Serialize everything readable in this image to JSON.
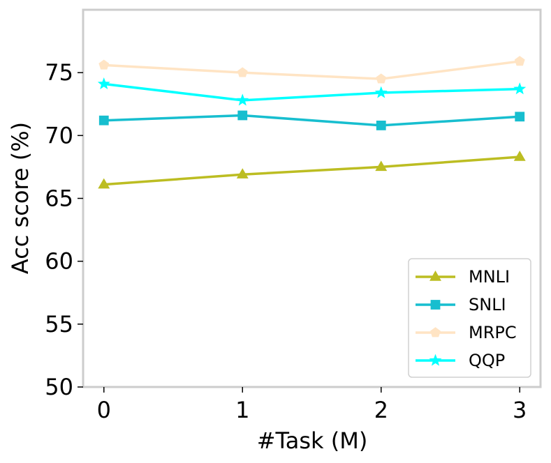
{
  "chart_data": {
    "type": "line",
    "title": "",
    "xlabel": "#Task (M)",
    "ylabel": "Acc score (%)",
    "x": [
      0,
      1,
      2,
      3
    ],
    "x_tick_labels": [
      "0",
      "1",
      "2",
      "3"
    ],
    "xlim": [
      -0.15,
      3.15
    ],
    "ylim": [
      50,
      80
    ],
    "y_ticks": [
      50,
      55,
      60,
      65,
      70,
      75
    ],
    "grid": false,
    "legend_position": "lower-right",
    "series": [
      {
        "name": "MNLI",
        "values": [
          66.1,
          66.9,
          67.5,
          68.3
        ],
        "color": "#bcbd22",
        "marker": "triangle"
      },
      {
        "name": "SNLI",
        "values": [
          71.2,
          71.6,
          70.8,
          71.5
        ],
        "color": "#17becf",
        "marker": "square"
      },
      {
        "name": "MRPC",
        "values": [
          75.6,
          75.0,
          74.5,
          75.9
        ],
        "color": "#ffe4c4",
        "marker": "pentagon"
      },
      {
        "name": "QQP",
        "values": [
          74.1,
          72.8,
          73.4,
          73.7
        ],
        "color": "#00ffff",
        "marker": "star"
      }
    ]
  }
}
